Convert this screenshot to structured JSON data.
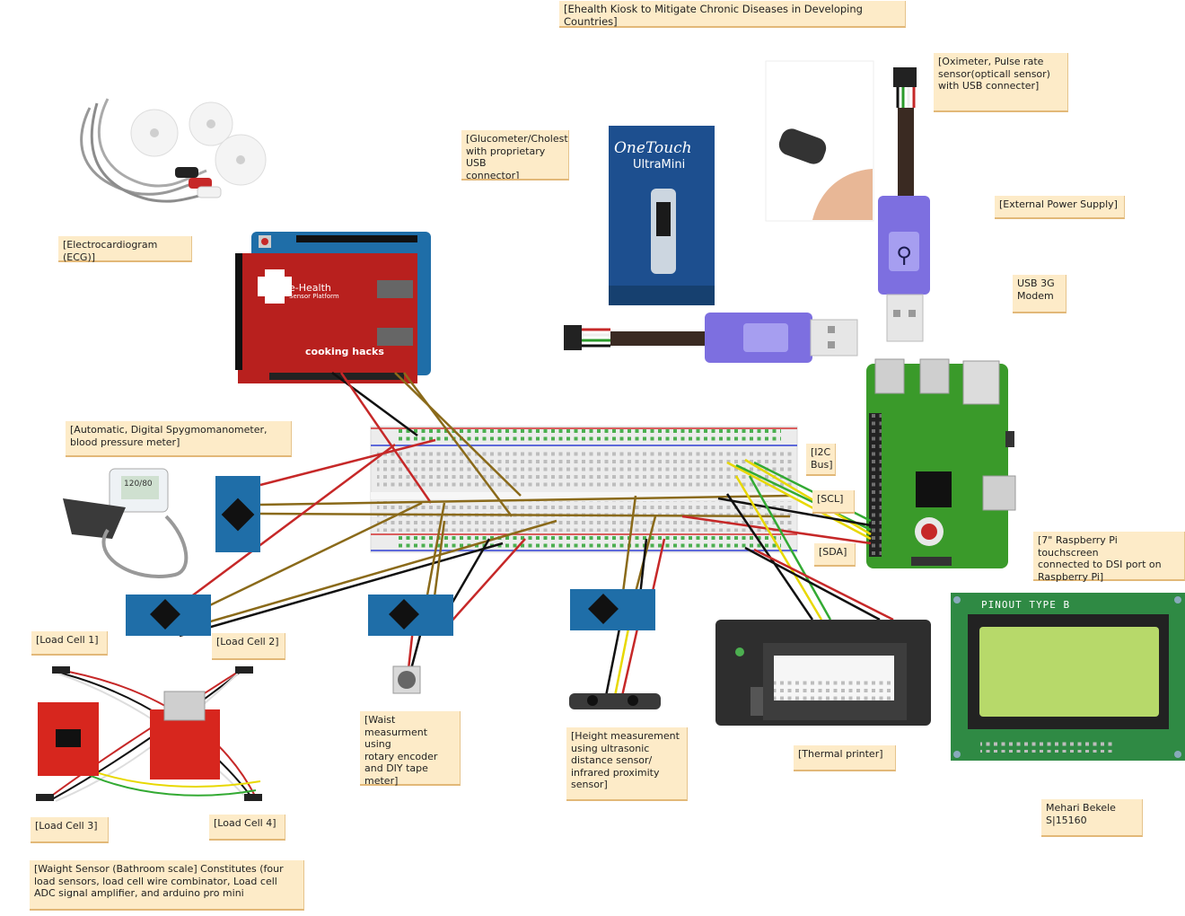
{
  "title": "[Ehealth Kiosk to Mitigate Chronic Diseases in Developing Countries]",
  "labels": {
    "ecg": "[Electrocardiogram (ECG)]",
    "glucometer": "[Glucometer/Choleste\nwith proprietary USB\nconnector]",
    "oximeter": "[Oximeter, Pulse rate\nsensor(opticall sensor)\nwith USB connecter]",
    "power": "[External Power Supply]",
    "modem": "USB 3G\nModem",
    "bp": "[Automatic, Digital Spygmomanometer,\nblood pressure meter]",
    "i2c": "[I2C\nBus]",
    "scl": "[SCL]",
    "sda": "[SDA]",
    "touchscreen": "[7\"  Raspberry Pi touchscreen\nconnected to DSI port on\nRaspberry Pi]",
    "load1": "[Load Cell 1]",
    "load2": "[Load Cell 2]",
    "load3": "[Load Cell 3]",
    "load4": "[Load Cell 4]",
    "waist": "[Waist\nmeasurment using\nrotary encoder\nand DIY tape\nmeter]",
    "height": "[Height measurement\nusing ultrasonic\ndistance sensor/\ninfrared proximity\nsensor]",
    "printer": "[Thermal printer]",
    "author": "Mehari Bekele\nS|15160",
    "weight": "[Waight Sensor (Bathroom scale] Constitutes (four\nload sensors, load cell wire combinator, Load cell\nADC signal amplifier, and arduino pro mini"
  },
  "devices": {
    "shield_brand": "e-Health",
    "shield_sub": "Sensor Platform",
    "shield_maker": "cooking hacks",
    "onetouch_brand": "OneTouch",
    "onetouch_model": "UltraMini",
    "lcd_header": "PINOUT TYPE B",
    "bp_screen": "120/80"
  },
  "colors": {
    "note_bg": "#fdebc8",
    "wire_red": "#cc1111",
    "wire_black": "#111111",
    "wire_brown": "#8a6a1a",
    "wire_yellow": "#e8d800",
    "wire_green": "#33aa33",
    "shield_red": "#b8201e",
    "arduino_blue": "#1f6ea8",
    "rpi_green": "#3a9a2a",
    "usb_purple": "#7d6fe0",
    "lcd_green": "#b7d96a"
  }
}
